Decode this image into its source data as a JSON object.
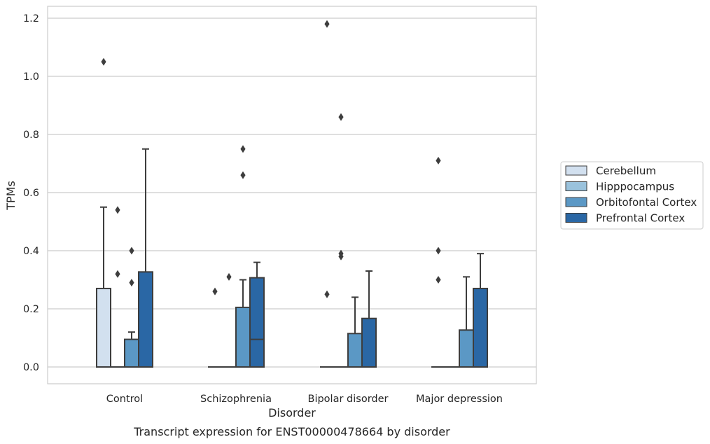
{
  "chart_data": {
    "type": "box",
    "title": "",
    "caption": "Transcript expression for ENST00000478664 by disorder",
    "xlabel": "Disorder",
    "ylabel": "TPMs",
    "categories": [
      "Control",
      "Schizophrenia",
      "Bipolar disorder",
      "Major depression"
    ],
    "ylim": [
      -0.055,
      1.24
    ],
    "yticks": [
      "0.0",
      "0.2",
      "0.4",
      "0.6",
      "0.8",
      "1.0",
      "1.2"
    ],
    "ytick_values": [
      0.0,
      0.2,
      0.4,
      0.6,
      0.8,
      1.0,
      1.2
    ],
    "grid": "horizontal",
    "legend_position": "right",
    "series": [
      {
        "name": "Cerebellum",
        "color": "#d2e0ef",
        "boxes": [
          {
            "q1": 0.0,
            "median": 0.0,
            "q3": 0.27,
            "whisker_low": 0.0,
            "whisker_high": 0.55,
            "outliers": [
              1.05
            ]
          },
          {
            "q1": 0.0,
            "median": 0.0,
            "q3": 0.0,
            "whisker_low": 0.0,
            "whisker_high": 0.0,
            "outliers": [
              0.26
            ]
          },
          {
            "q1": 0.0,
            "median": 0.0,
            "q3": 0.0,
            "whisker_low": 0.0,
            "whisker_high": 0.0,
            "outliers": [
              0.25,
              1.18
            ]
          },
          {
            "q1": 0.0,
            "median": 0.0,
            "q3": 0.0,
            "whisker_low": 0.0,
            "whisker_high": 0.0,
            "outliers": [
              0.3,
              0.4,
              0.71
            ]
          }
        ]
      },
      {
        "name": "Hipppocampus",
        "color": "#9ac2dc",
        "boxes": [
          {
            "q1": 0.0,
            "median": 0.0,
            "q3": 0.0,
            "whisker_low": 0.0,
            "whisker_high": 0.0,
            "outliers": [
              0.32,
              0.54
            ]
          },
          {
            "q1": 0.0,
            "median": 0.0,
            "q3": 0.0,
            "whisker_low": 0.0,
            "whisker_high": 0.0,
            "outliers": [
              0.31
            ]
          },
          {
            "q1": 0.0,
            "median": 0.0,
            "q3": 0.0,
            "whisker_low": 0.0,
            "whisker_high": 0.0,
            "outliers": [
              0.38,
              0.39,
              0.86
            ]
          },
          {
            "q1": 0.0,
            "median": 0.0,
            "q3": 0.0,
            "whisker_low": 0.0,
            "whisker_high": 0.0,
            "outliers": []
          }
        ]
      },
      {
        "name": "Orbitofontal Cortex",
        "color": "#5b98c5",
        "boxes": [
          {
            "q1": 0.0,
            "median": 0.0,
            "q3": 0.095,
            "whisker_low": 0.0,
            "whisker_high": 0.12,
            "outliers": [
              0.29,
              0.4
            ]
          },
          {
            "q1": 0.0,
            "median": 0.0,
            "q3": 0.205,
            "whisker_low": 0.0,
            "whisker_high": 0.3,
            "outliers": [
              0.66,
              0.75
            ]
          },
          {
            "q1": 0.0,
            "median": 0.0,
            "q3": 0.115,
            "whisker_low": 0.0,
            "whisker_high": 0.24,
            "outliers": []
          },
          {
            "q1": 0.0,
            "median": 0.0,
            "q3": 0.127,
            "whisker_low": 0.0,
            "whisker_high": 0.31,
            "outliers": []
          }
        ]
      },
      {
        "name": "Prefrontal Cortex",
        "color": "#2a67a5",
        "boxes": [
          {
            "q1": 0.0,
            "median": 0.0,
            "q3": 0.327,
            "whisker_low": 0.0,
            "whisker_high": 0.75,
            "outliers": []
          },
          {
            "q1": 0.0,
            "median": 0.095,
            "q3": 0.307,
            "whisker_low": 0.0,
            "whisker_high": 0.36,
            "outliers": []
          },
          {
            "q1": 0.0,
            "median": 0.0,
            "q3": 0.167,
            "whisker_low": 0.0,
            "whisker_high": 0.33,
            "outliers": []
          },
          {
            "q1": 0.0,
            "median": 0.0,
            "q3": 0.27,
            "whisker_low": 0.0,
            "whisker_high": 0.39,
            "outliers": []
          }
        ]
      }
    ]
  }
}
